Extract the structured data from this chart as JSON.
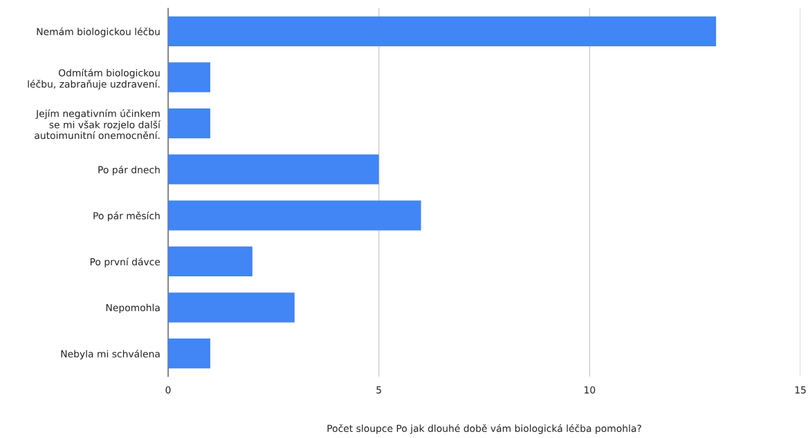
{
  "chart_data": {
    "type": "bar",
    "orientation": "horizontal",
    "xlabel": "Počet sloupce Po jak dlouhé době vám biologická léčba pomohla?",
    "categories": [
      "Nemám biologickou léčbu",
      "Odmítám biologickou\nléčbu, zabraňuje uzdravení.",
      "Jejím negativním účinkem\nse mi však rozjelo další\nautoimunitní onemocnění.",
      "Po pár dnech",
      "Po pár měsích",
      "Po první dávce",
      "Nepomohla",
      "Nebyla mi schválena"
    ],
    "values": [
      13,
      1,
      1,
      5,
      6,
      2,
      3,
      1
    ],
    "color": "#4285f4",
    "xlim": [
      0,
      15
    ],
    "xticks": [
      0,
      5,
      10,
      15
    ],
    "grid": "x",
    "legend": false
  }
}
